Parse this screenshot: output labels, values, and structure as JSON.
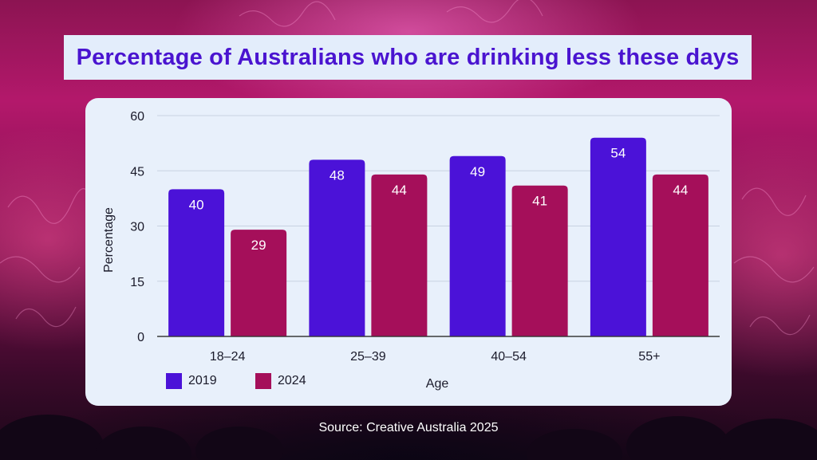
{
  "chart_data": {
    "type": "bar",
    "title": "Percentage of Australians who are drinking less these days",
    "xlabel": "Age",
    "ylabel": "Percentage",
    "categories": [
      "18–24",
      "25–39",
      "40–54",
      "55+"
    ],
    "series": [
      {
        "name": "2019",
        "color": "#4b12d8",
        "values": [
          40,
          48,
          49,
          54
        ]
      },
      {
        "name": "2024",
        "color": "#a50f5a",
        "values": [
          29,
          44,
          41,
          44
        ]
      }
    ],
    "ylim": [
      0,
      60
    ],
    "yticks": [
      0,
      15,
      30,
      45,
      60
    ],
    "grid": true,
    "legend": "bottom-left",
    "source": "Source: Creative Australia 2025"
  },
  "colors": {
    "title_text": "#4a14d0",
    "title_bg": "#e3edfb",
    "card_bg": "#e8f0fb"
  }
}
